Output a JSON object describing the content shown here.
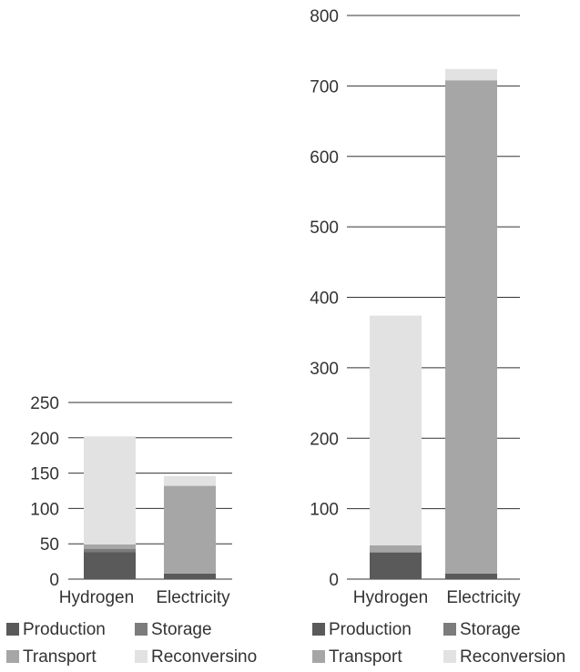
{
  "chart_data": [
    {
      "type": "bar",
      "stacked": true,
      "categories": [
        "Hydrogen",
        "Electricity"
      ],
      "ylim": [
        0,
        250
      ],
      "yticks": [
        "0",
        "50",
        "100",
        "150",
        "200",
        "250"
      ],
      "grid": true,
      "legend_position": "bottom",
      "series": [
        {
          "name": "Production",
          "color": "#5a5a5a",
          "values": [
            38,
            8
          ]
        },
        {
          "name": "Storage",
          "color": "#7c7c7c",
          "values": [
            5,
            0
          ]
        },
        {
          "name": "Transport",
          "color": "#a6a6a7",
          "values": [
            6,
            124
          ]
        },
        {
          "name": "Reconversino",
          "color": "#e2e2e3",
          "values": [
            153,
            14
          ]
        }
      ]
    },
    {
      "type": "bar",
      "stacked": true,
      "categories": [
        "Hydrogen",
        "Electricity"
      ],
      "ylim": [
        0,
        800
      ],
      "yticks": [
        "0",
        "100",
        "200",
        "300",
        "400",
        "500",
        "600",
        "700",
        "800"
      ],
      "grid": true,
      "legend_position": "bottom",
      "series": [
        {
          "name": "Production",
          "color": "#5a5a5a",
          "values": [
            38,
            8
          ]
        },
        {
          "name": "Storage",
          "color": "#7c7c7c",
          "values": [
            0,
            0
          ]
        },
        {
          "name": "Transport",
          "color": "#a6a6a7",
          "values": [
            10,
            700
          ]
        },
        {
          "name": "Reconversion",
          "color": "#e2e2e3",
          "values": [
            326,
            16
          ]
        }
      ]
    }
  ]
}
